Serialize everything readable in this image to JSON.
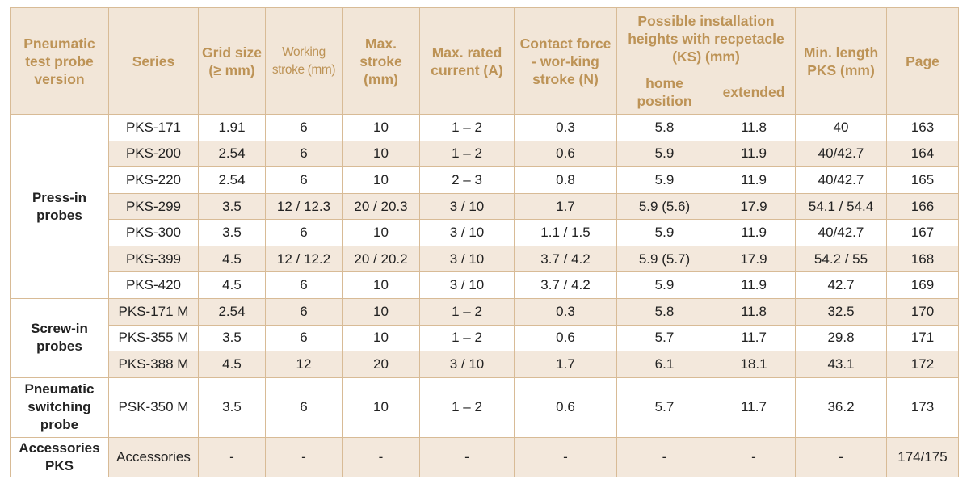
{
  "headers": {
    "version": "Pneumatic test probe version",
    "series": "Series",
    "grid": "Grid size (≥ mm)",
    "working_stroke": "Working stroke (mm)",
    "max_stroke": "Max. stroke (mm)",
    "rated_current": "Max. rated current (A)",
    "contact_force": "Contact force - wor-king stroke (N)",
    "install_heights": "Possible installation heights with recpetacle (KS) (mm)",
    "home_position": "home position",
    "extended": "extended",
    "min_length": "Min. length PKS (mm)",
    "page": "Page"
  },
  "groups": {
    "press_in": "Press-in probes",
    "screw_in": "Screw-in probes",
    "switching": "Pneumatic switching probe",
    "accessories": "Accessories PKS"
  },
  "rows": [
    {
      "series": "PKS-171",
      "grid": "1.91",
      "ws": "6",
      "ms": "10",
      "cur": "1 – 2",
      "force": "0.3",
      "home": "5.8",
      "ext": "11.8",
      "minlen": "40",
      "page": "163"
    },
    {
      "series": "PKS-200",
      "grid": "2.54",
      "ws": "6",
      "ms": "10",
      "cur": "1 – 2",
      "force": "0.6",
      "home": "5.9",
      "ext": "11.9",
      "minlen": "40/42.7",
      "page": "164"
    },
    {
      "series": "PKS-220",
      "grid": "2.54",
      "ws": "6",
      "ms": "10",
      "cur": "2 – 3",
      "force": "0.8",
      "home": "5.9",
      "ext": "11.9",
      "minlen": "40/42.7",
      "page": "165"
    },
    {
      "series": "PKS-299",
      "grid": "3.5",
      "ws": "12 / 12.3",
      "ms": "20 / 20.3",
      "cur": "3 / 10",
      "force": "1.7",
      "home": "5.9 (5.6)",
      "ext": "17.9",
      "minlen": "54.1 / 54.4",
      "page": "166"
    },
    {
      "series": "PKS-300",
      "grid": "3.5",
      "ws": "6",
      "ms": "10",
      "cur": "3 / 10",
      "force": "1.1 / 1.5",
      "home": "5.9",
      "ext": "11.9",
      "minlen": "40/42.7",
      "page": "167"
    },
    {
      "series": "PKS-399",
      "grid": "4.5",
      "ws": "12 / 12.2",
      "ms": "20 / 20.2",
      "cur": "3 / 10",
      "force": "3.7 / 4.2",
      "home": "5.9 (5.7)",
      "ext": "17.9",
      "minlen": "54.2 / 55",
      "page": "168"
    },
    {
      "series": "PKS-420",
      "grid": "4.5",
      "ws": "6",
      "ms": "10",
      "cur": "3 / 10",
      "force": "3.7 / 4.2",
      "home": "5.9",
      "ext": "11.9",
      "minlen": "42.7",
      "page": "169"
    },
    {
      "series": "PKS-171 M",
      "grid": "2.54",
      "ws": "6",
      "ms": "10",
      "cur": "1 – 2",
      "force": "0.3",
      "home": "5.8",
      "ext": "11.8",
      "minlen": "32.5",
      "page": "170"
    },
    {
      "series": "PKS-355 M",
      "grid": "3.5",
      "ws": "6",
      "ms": "10",
      "cur": "1 – 2",
      "force": "0.6",
      "home": "5.7",
      "ext": "11.7",
      "minlen": "29.8",
      "page": "171"
    },
    {
      "series": "PKS-388 M",
      "grid": "4.5",
      "ws": "12",
      "ms": "20",
      "cur": "3 / 10",
      "force": "1.7",
      "home": "6.1",
      "ext": "18.1",
      "minlen": "43.1",
      "page": "172"
    },
    {
      "series": "PSK-350 M",
      "grid": "3.5",
      "ws": "6",
      "ms": "10",
      "cur": "1 – 2",
      "force": "0.6",
      "home": "5.7",
      "ext": "11.7",
      "minlen": "36.2",
      "page": "173"
    },
    {
      "series": "Accessories",
      "grid": "-",
      "ws": "-",
      "ms": "-",
      "cur": "-",
      "force": "-",
      "home": "-",
      "ext": "-",
      "minlen": "-",
      "page": "174/175"
    }
  ],
  "colors": {
    "header_text": "#bd9356",
    "header_bg": "#f2e6d8",
    "row_shade": "#f3e8dc",
    "border": "#d8bb96"
  }
}
